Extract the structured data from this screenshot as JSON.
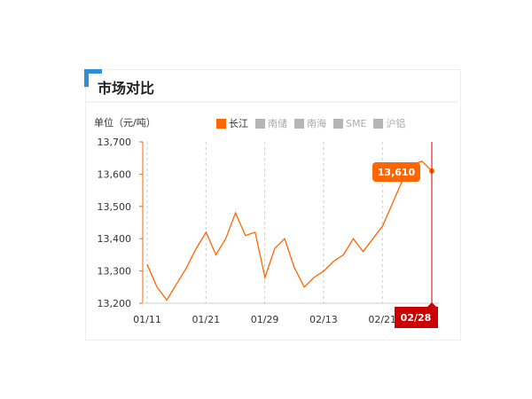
{
  "panel": {
    "title": "市场对比",
    "unit": "单位（元/吨）"
  },
  "legend": [
    {
      "label": "长江",
      "color": "#ff6600",
      "active": true
    },
    {
      "label": "南储",
      "color": "#b5b5b5",
      "active": false
    },
    {
      "label": "南海",
      "color": "#b5b5b5",
      "active": false
    },
    {
      "label": "SME",
      "color": "#b5b5b5",
      "active": false
    },
    {
      "label": "沪铝",
      "color": "#b5b5b5",
      "active": false
    }
  ],
  "chart_data": {
    "type": "line",
    "ylim": [
      13200,
      13700
    ],
    "yticks": [
      "13,200",
      "13,300",
      "13,400",
      "13,500",
      "13,600",
      "13,700"
    ],
    "xticks": [
      "01/11",
      "01/21",
      "01/29",
      "02/13",
      "02/21"
    ],
    "grid": "vertical dashed",
    "series": [
      {
        "name": "长江",
        "color": "#ff6600",
        "values": [
          13320,
          13250,
          13210,
          13260,
          13310,
          13370,
          13420,
          13350,
          13400,
          13480,
          13410,
          13420,
          13280,
          13370,
          13400,
          13310,
          13250,
          13280,
          13300,
          13330,
          13350,
          13400,
          13360,
          13400,
          13440,
          13510,
          13580,
          13630,
          13640,
          13610
        ]
      }
    ],
    "tooltip": {
      "value": "13,610",
      "date": "02/28"
    }
  }
}
